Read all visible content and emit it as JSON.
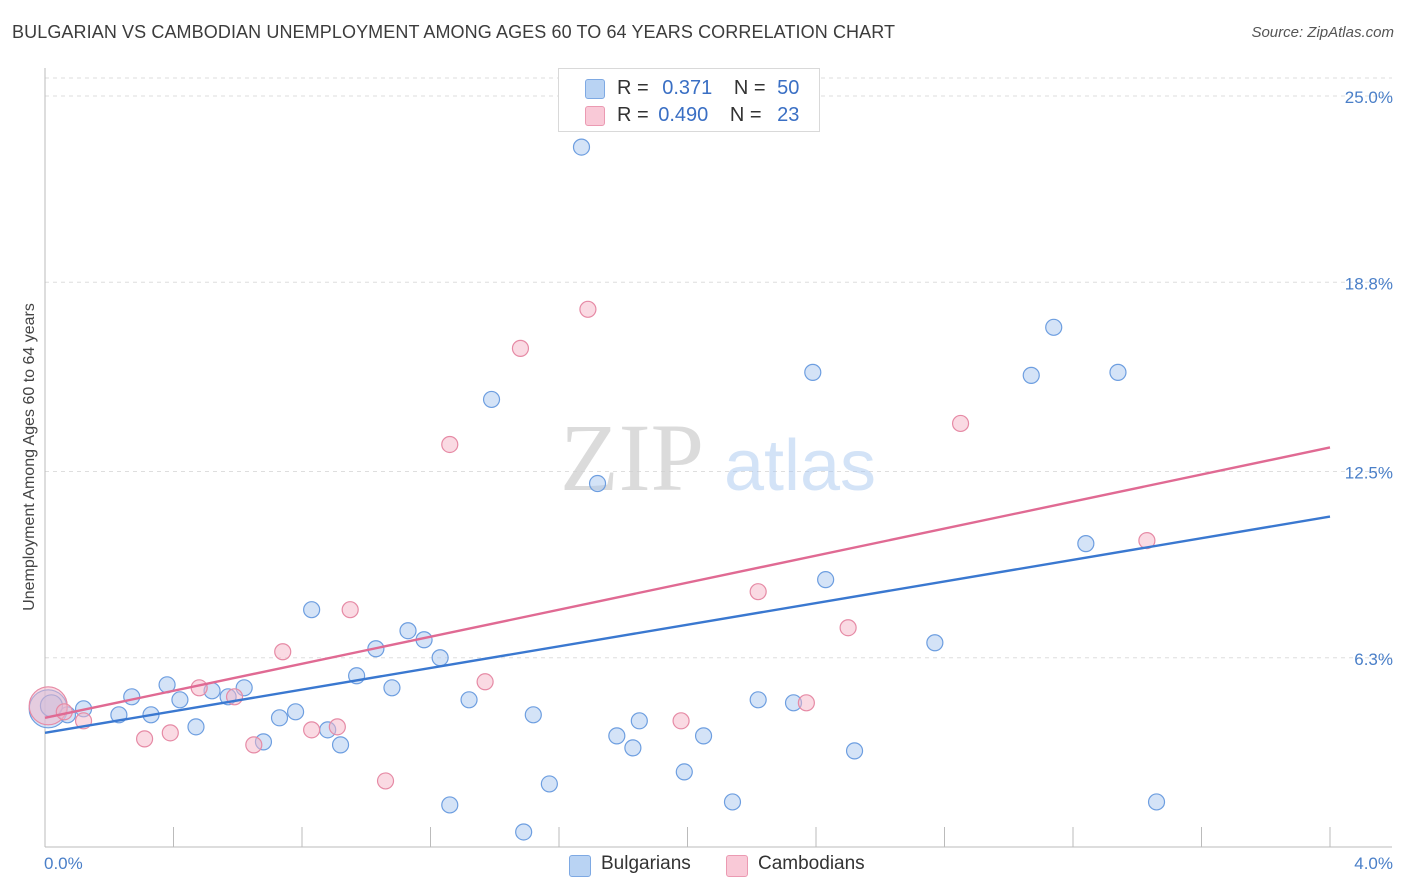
{
  "title": "BULGARIAN VS CAMBODIAN UNEMPLOYMENT AMONG AGES 60 TO 64 YEARS CORRELATION CHART",
  "source": "Source: ZipAtlas.com",
  "watermark": {
    "zip": "ZIP",
    "atlas": "atlas"
  },
  "legend": {
    "rows": [
      {
        "r_label": "R =",
        "r_value": "0.371",
        "n_label": "N =",
        "n_value": "50",
        "color": "#a9c8f0"
      },
      {
        "r_label": "R =",
        "r_value": "0.490",
        "n_label": "N =",
        "n_value": "23",
        "color": "#f6b5c8"
      }
    ]
  },
  "chart_data": {
    "type": "scatter",
    "title": "BULGARIAN VS CAMBODIAN UNEMPLOYMENT AMONG AGES 60 TO 64 YEARS CORRELATION CHART",
    "xlabel": "",
    "ylabel": "Unemployment Among Ages 60 to 64 years",
    "xlim": [
      0,
      4.0
    ],
    "ylim": [
      0,
      25.8
    ],
    "x_tick_labels": [
      "0.0%",
      "4.0%"
    ],
    "y_ticks": [
      6.3,
      12.5,
      18.8,
      25.0
    ],
    "y_tick_labels": [
      "6.3%",
      "12.5%",
      "18.8%",
      "25.0%"
    ],
    "grid": true,
    "legend_placement": "bottom",
    "series": [
      {
        "name": "Bulgarians",
        "color": "#a9c8f0",
        "stroke": "#6d9ee0",
        "trend_color": "#3a78d0",
        "trend": [
          [
            0.0,
            3.8
          ],
          [
            4.0,
            11.0
          ]
        ],
        "points": [
          [
            0.01,
            4.6
          ],
          [
            0.07,
            4.4
          ],
          [
            0.12,
            4.6
          ],
          [
            0.23,
            4.4
          ],
          [
            0.27,
            5.0
          ],
          [
            0.33,
            4.4
          ],
          [
            0.38,
            5.4
          ],
          [
            0.42,
            4.9
          ],
          [
            0.47,
            4.0
          ],
          [
            0.52,
            5.2
          ],
          [
            0.57,
            5.0
          ],
          [
            0.62,
            5.3
          ],
          [
            0.68,
            3.5
          ],
          [
            0.73,
            4.3
          ],
          [
            0.78,
            4.5
          ],
          [
            0.83,
            7.9
          ],
          [
            0.88,
            3.9
          ],
          [
            0.92,
            3.4
          ],
          [
            0.97,
            5.7
          ],
          [
            1.03,
            6.6
          ],
          [
            1.08,
            5.3
          ],
          [
            1.13,
            7.2
          ],
          [
            1.18,
            6.9
          ],
          [
            1.23,
            6.3
          ],
          [
            1.26,
            1.4
          ],
          [
            1.32,
            4.9
          ],
          [
            1.39,
            14.9
          ],
          [
            1.49,
            0.5
          ],
          [
            1.52,
            4.4
          ],
          [
            1.57,
            2.1
          ],
          [
            1.67,
            23.3
          ],
          [
            1.72,
            12.1
          ],
          [
            1.78,
            3.7
          ],
          [
            1.83,
            3.3
          ],
          [
            1.85,
            4.2
          ],
          [
            1.99,
            2.5
          ],
          [
            2.05,
            3.7
          ],
          [
            2.14,
            1.5
          ],
          [
            2.22,
            4.9
          ],
          [
            2.33,
            4.8
          ],
          [
            2.39,
            15.8
          ],
          [
            2.43,
            8.9
          ],
          [
            2.52,
            3.2
          ],
          [
            2.77,
            6.8
          ],
          [
            3.07,
            15.7
          ],
          [
            3.14,
            17.3
          ],
          [
            3.24,
            10.1
          ],
          [
            3.34,
            15.8
          ],
          [
            3.46,
            1.5
          ],
          [
            0.02,
            4.7
          ]
        ],
        "sizes": [
          38,
          16,
          16,
          16,
          16,
          16,
          16,
          16,
          16,
          16,
          16,
          16,
          16,
          16,
          16,
          16,
          16,
          16,
          16,
          16,
          16,
          16,
          16,
          16,
          16,
          16,
          16,
          16,
          16,
          16,
          16,
          16,
          16,
          16,
          16,
          16,
          16,
          16,
          16,
          16,
          16,
          16,
          16,
          16,
          16,
          16,
          16,
          16,
          16,
          22
        ]
      },
      {
        "name": "Cambodians",
        "color": "#f6b5c8",
        "stroke": "#e68aa5",
        "trend_color": "#e06a93",
        "trend": [
          [
            0.0,
            4.3
          ],
          [
            4.0,
            13.3
          ]
        ],
        "points": [
          [
            0.01,
            4.7
          ],
          [
            0.12,
            4.2
          ],
          [
            0.31,
            3.6
          ],
          [
            0.39,
            3.8
          ],
          [
            0.48,
            5.3
          ],
          [
            0.59,
            5.0
          ],
          [
            0.65,
            3.4
          ],
          [
            0.74,
            6.5
          ],
          [
            0.83,
            3.9
          ],
          [
            0.91,
            4.0
          ],
          [
            0.95,
            7.9
          ],
          [
            1.06,
            2.2
          ],
          [
            1.26,
            13.4
          ],
          [
            1.37,
            5.5
          ],
          [
            1.48,
            16.6
          ],
          [
            1.69,
            17.9
          ],
          [
            1.98,
            4.2
          ],
          [
            2.22,
            8.5
          ],
          [
            2.37,
            4.8
          ],
          [
            2.5,
            7.3
          ],
          [
            2.85,
            14.1
          ],
          [
            3.43,
            10.2
          ],
          [
            0.06,
            4.5
          ]
        ],
        "sizes": [
          38,
          16,
          16,
          16,
          16,
          16,
          16,
          16,
          16,
          16,
          16,
          16,
          16,
          16,
          16,
          16,
          16,
          16,
          16,
          16,
          16,
          16,
          16
        ]
      }
    ]
  }
}
